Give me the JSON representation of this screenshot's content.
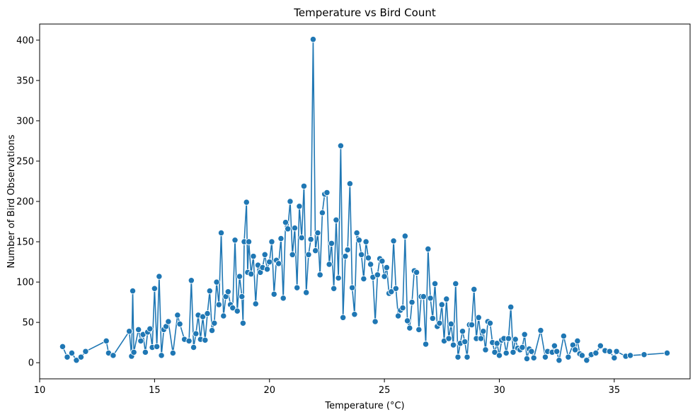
{
  "chart_data": {
    "type": "line",
    "title": "Temperature vs Bird Count",
    "xlabel": "Temperature (°C)",
    "ylabel": "Number of Bird Observations",
    "xlim": [
      10.0,
      38.3
    ],
    "ylim": [
      -20,
      420
    ],
    "xticks": [
      10,
      15,
      20,
      25,
      30,
      35
    ],
    "yticks": [
      0,
      50,
      100,
      150,
      200,
      250,
      300,
      350,
      400
    ],
    "grid": false,
    "legend": "none",
    "colors": {
      "line": "#1f77b4",
      "marker_edge": "#ffffff"
    },
    "series": [
      {
        "marker": "circle",
        "points": [
          [
            11.0,
            20
          ],
          [
            11.2,
            7
          ],
          [
            11.4,
            12
          ],
          [
            11.6,
            3
          ],
          [
            11.8,
            7
          ],
          [
            12.0,
            14
          ],
          [
            12.9,
            27
          ],
          [
            13.0,
            12
          ],
          [
            13.2,
            9
          ],
          [
            13.9,
            39
          ],
          [
            14.0,
            8
          ],
          [
            14.05,
            89
          ],
          [
            14.1,
            13
          ],
          [
            14.3,
            41
          ],
          [
            14.4,
            27
          ],
          [
            14.5,
            35
          ],
          [
            14.6,
            13
          ],
          [
            14.7,
            38
          ],
          [
            14.8,
            42
          ],
          [
            14.9,
            19
          ],
          [
            15.0,
            92
          ],
          [
            15.1,
            20
          ],
          [
            15.2,
            107
          ],
          [
            15.3,
            9
          ],
          [
            15.4,
            41
          ],
          [
            15.5,
            45
          ],
          [
            15.6,
            51
          ],
          [
            15.8,
            12
          ],
          [
            16.0,
            59
          ],
          [
            16.1,
            48
          ],
          [
            16.3,
            29
          ],
          [
            16.5,
            27
          ],
          [
            16.6,
            102
          ],
          [
            16.7,
            19
          ],
          [
            16.8,
            36
          ],
          [
            16.9,
            59
          ],
          [
            17.0,
            29
          ],
          [
            17.1,
            57
          ],
          [
            17.2,
            28
          ],
          [
            17.3,
            61
          ],
          [
            17.4,
            89
          ],
          [
            17.5,
            40
          ],
          [
            17.6,
            49
          ],
          [
            17.7,
            100
          ],
          [
            17.8,
            72
          ],
          [
            17.9,
            161
          ],
          [
            18.0,
            58
          ],
          [
            18.1,
            82
          ],
          [
            18.2,
            88
          ],
          [
            18.3,
            72
          ],
          [
            18.4,
            68
          ],
          [
            18.5,
            152
          ],
          [
            18.6,
            64
          ],
          [
            18.7,
            107
          ],
          [
            18.8,
            82
          ],
          [
            18.85,
            49
          ],
          [
            18.9,
            150
          ],
          [
            19.0,
            199
          ],
          [
            19.05,
            112
          ],
          [
            19.1,
            150
          ],
          [
            19.2,
            110
          ],
          [
            19.3,
            132
          ],
          [
            19.4,
            73
          ],
          [
            19.5,
            121
          ],
          [
            19.6,
            112
          ],
          [
            19.7,
            118
          ],
          [
            19.8,
            134
          ],
          [
            19.9,
            116
          ],
          [
            20.0,
            125
          ],
          [
            20.1,
            150
          ],
          [
            20.2,
            85
          ],
          [
            20.3,
            127
          ],
          [
            20.4,
            123
          ],
          [
            20.5,
            154
          ],
          [
            20.6,
            80
          ],
          [
            20.7,
            174
          ],
          [
            20.8,
            166
          ],
          [
            20.9,
            200
          ],
          [
            21.0,
            134
          ],
          [
            21.1,
            167
          ],
          [
            21.2,
            93
          ],
          [
            21.3,
            194
          ],
          [
            21.4,
            155
          ],
          [
            21.5,
            219
          ],
          [
            21.6,
            87
          ],
          [
            21.7,
            134
          ],
          [
            21.8,
            153
          ],
          [
            21.9,
            401
          ],
          [
            22.0,
            139
          ],
          [
            22.1,
            161
          ],
          [
            22.2,
            109
          ],
          [
            22.3,
            186
          ],
          [
            22.4,
            209
          ],
          [
            22.5,
            211
          ],
          [
            22.6,
            122
          ],
          [
            22.7,
            148
          ],
          [
            22.8,
            92
          ],
          [
            22.9,
            177
          ],
          [
            23.0,
            105
          ],
          [
            23.1,
            269
          ],
          [
            23.2,
            56
          ],
          [
            23.3,
            132
          ],
          [
            23.4,
            140
          ],
          [
            23.5,
            222
          ],
          [
            23.6,
            93
          ],
          [
            23.7,
            60
          ],
          [
            23.8,
            161
          ],
          [
            23.9,
            152
          ],
          [
            24.0,
            134
          ],
          [
            24.1,
            104
          ],
          [
            24.2,
            150
          ],
          [
            24.3,
            130
          ],
          [
            24.4,
            122
          ],
          [
            24.5,
            106
          ],
          [
            24.6,
            51
          ],
          [
            24.7,
            109
          ],
          [
            24.8,
            129
          ],
          [
            24.9,
            126
          ],
          [
            25.0,
            107
          ],
          [
            25.1,
            118
          ],
          [
            25.2,
            86
          ],
          [
            25.3,
            88
          ],
          [
            25.4,
            151
          ],
          [
            25.5,
            92
          ],
          [
            25.6,
            58
          ],
          [
            25.7,
            65
          ],
          [
            25.8,
            68
          ],
          [
            25.9,
            157
          ],
          [
            26.0,
            52
          ],
          [
            26.1,
            43
          ],
          [
            26.2,
            75
          ],
          [
            26.3,
            114
          ],
          [
            26.4,
            112
          ],
          [
            26.5,
            41
          ],
          [
            26.6,
            82
          ],
          [
            26.7,
            82
          ],
          [
            26.8,
            23
          ],
          [
            26.9,
            141
          ],
          [
            27.0,
            80
          ],
          [
            27.1,
            55
          ],
          [
            27.2,
            98
          ],
          [
            27.3,
            45
          ],
          [
            27.4,
            49
          ],
          [
            27.5,
            72
          ],
          [
            27.6,
            27
          ],
          [
            27.7,
            79
          ],
          [
            27.8,
            30
          ],
          [
            27.9,
            48
          ],
          [
            28.0,
            22
          ],
          [
            28.1,
            98
          ],
          [
            28.2,
            7
          ],
          [
            28.3,
            24
          ],
          [
            28.4,
            39
          ],
          [
            28.5,
            26
          ],
          [
            28.6,
            7
          ],
          [
            28.7,
            47
          ],
          [
            28.8,
            47
          ],
          [
            28.9,
            91
          ],
          [
            29.0,
            30
          ],
          [
            29.1,
            56
          ],
          [
            29.2,
            30
          ],
          [
            29.3,
            39
          ],
          [
            29.4,
            16
          ],
          [
            29.5,
            51
          ],
          [
            29.6,
            49
          ],
          [
            29.7,
            25
          ],
          [
            29.8,
            13
          ],
          [
            29.9,
            24
          ],
          [
            30.0,
            9
          ],
          [
            30.1,
            28
          ],
          [
            30.2,
            30
          ],
          [
            30.3,
            12
          ],
          [
            30.4,
            30
          ],
          [
            30.5,
            69
          ],
          [
            30.6,
            13
          ],
          [
            30.7,
            29
          ],
          [
            30.8,
            18
          ],
          [
            30.9,
            16
          ],
          [
            31.0,
            19
          ],
          [
            31.1,
            35
          ],
          [
            31.2,
            5
          ],
          [
            31.3,
            17
          ],
          [
            31.4,
            14
          ],
          [
            31.5,
            6
          ],
          [
            31.8,
            40
          ],
          [
            32.0,
            7
          ],
          [
            32.1,
            14
          ],
          [
            32.3,
            13
          ],
          [
            32.4,
            21
          ],
          [
            32.5,
            14
          ],
          [
            32.6,
            3
          ],
          [
            32.8,
            33
          ],
          [
            33.0,
            7
          ],
          [
            33.2,
            22
          ],
          [
            33.3,
            16
          ],
          [
            33.4,
            27
          ],
          [
            33.5,
            11
          ],
          [
            33.6,
            9
          ],
          [
            33.8,
            3
          ],
          [
            34.0,
            10
          ],
          [
            34.2,
            12
          ],
          [
            34.4,
            21
          ],
          [
            34.6,
            15
          ],
          [
            34.8,
            14
          ],
          [
            35.0,
            6
          ],
          [
            35.1,
            14
          ],
          [
            35.5,
            8
          ],
          [
            35.7,
            9
          ],
          [
            36.3,
            10
          ],
          [
            37.3,
            12
          ]
        ]
      }
    ]
  }
}
